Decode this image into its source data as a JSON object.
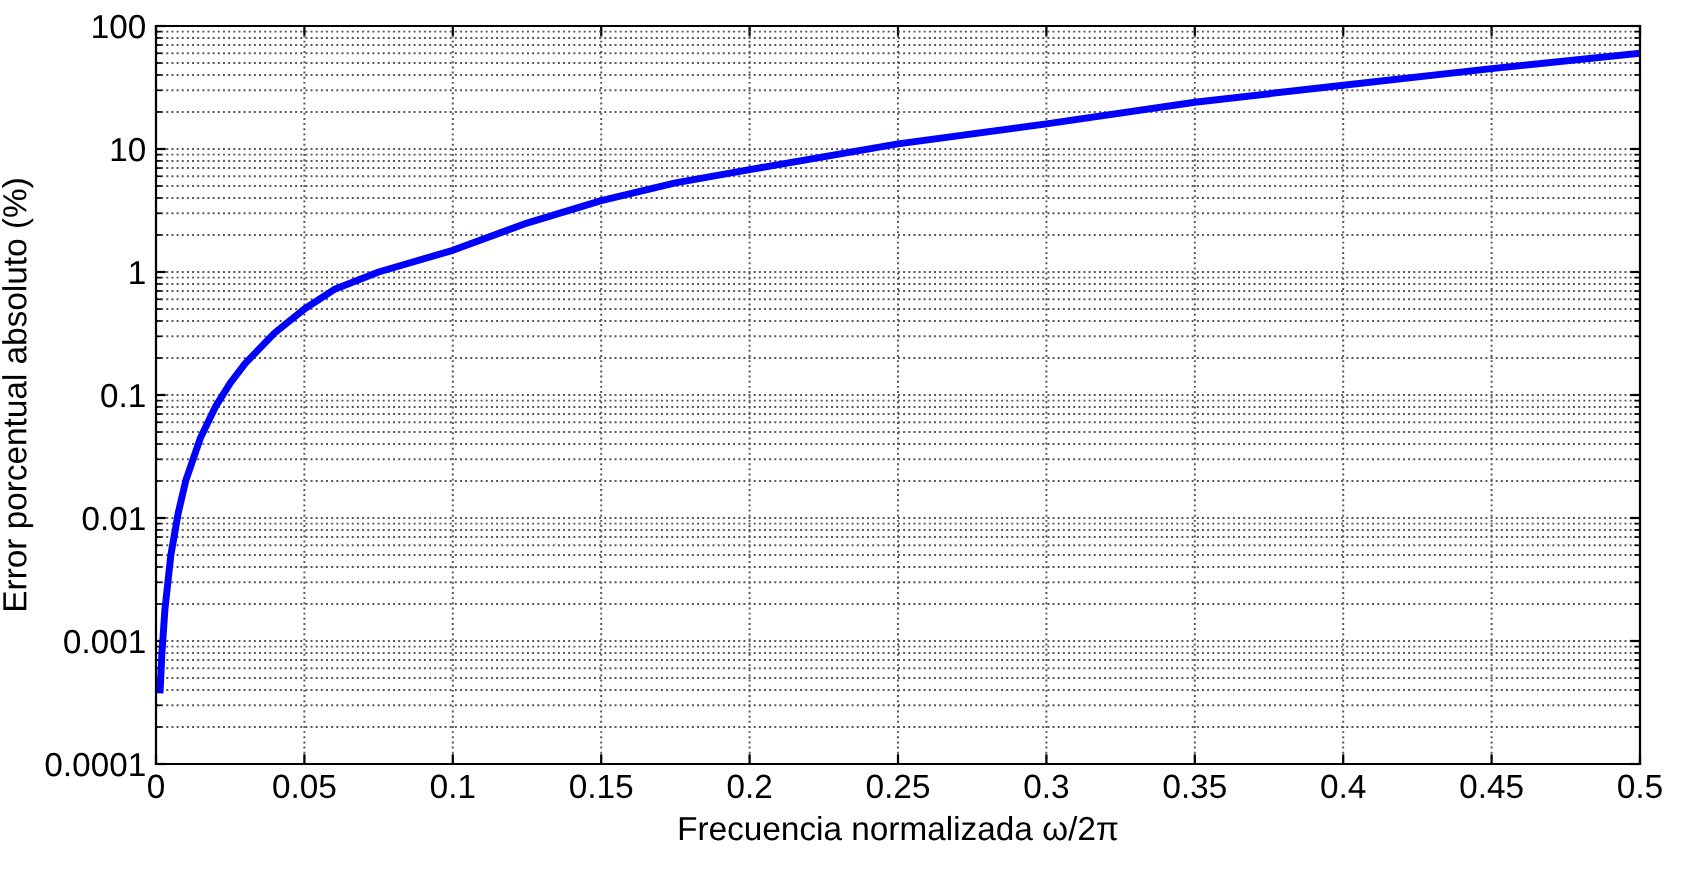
{
  "chart_data": {
    "type": "line",
    "xlabel": "Frecuencia normalizada ω/2π",
    "ylabel": "Error porcentual absoluto (%)",
    "x": [
      0.0014,
      0.002,
      0.003,
      0.005,
      0.0075,
      0.01,
      0.015,
      0.02,
      0.025,
      0.03,
      0.04,
      0.05,
      0.06,
      0.075,
      0.1,
      0.125,
      0.15,
      0.175,
      0.2,
      0.25,
      0.3,
      0.35,
      0.4,
      0.45,
      0.5
    ],
    "series": [
      {
        "color": "#0000ff",
        "values": [
          0.0004,
          0.0008,
          0.0018,
          0.005,
          0.011,
          0.02,
          0.045,
          0.08,
          0.125,
          0.18,
          0.32,
          0.5,
          0.72,
          1.0,
          1.5,
          2.5,
          3.8,
          5.3,
          6.8,
          11,
          16,
          24,
          33,
          45,
          60
        ]
      }
    ],
    "xlim": [
      0,
      0.5
    ],
    "xticks": [
      0,
      0.05,
      0.1,
      0.15,
      0.2,
      0.25,
      0.3,
      0.35,
      0.4,
      0.45,
      0.5
    ],
    "ylim": [
      0.0001,
      100
    ],
    "yticks": [
      0.0001,
      0.001,
      0.01,
      0.1,
      1,
      10,
      100
    ],
    "log": "y",
    "grid": true,
    "marker": "none",
    "line_style": "solid"
  }
}
